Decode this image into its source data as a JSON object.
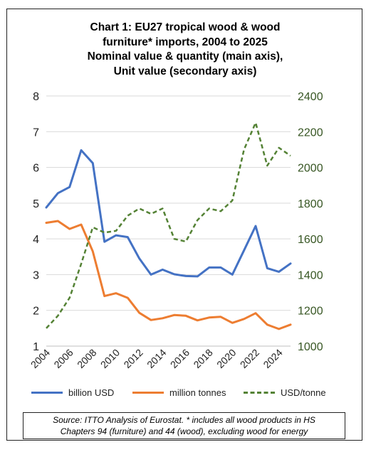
{
  "title_lines": [
    "Chart 1: EU27 tropical wood & wood",
    "furniture* imports, 2004 to 2025",
    "Nominal value & quantity (main axis),",
    "Unit value (secondary axis)"
  ],
  "source_lines": [
    "Source: ITTO Analysis of Eurostat. * includes all wood products in HS",
    "Chapters 94 (furniture) and 44 (wood), excluding wood for energy"
  ],
  "colors": {
    "billion_usd": "#4472C4",
    "million_tonnes": "#ED7D31",
    "usd_per_tonne": "#548235",
    "grid": "#d9d9d9",
    "axis_text": "#222222",
    "secondary_axis_text": "#375623"
  },
  "chart_data": {
    "type": "line",
    "grid": true,
    "legend_position": "bottom",
    "x": [
      2004,
      2005,
      2006,
      2007,
      2008,
      2009,
      2010,
      2011,
      2012,
      2013,
      2014,
      2015,
      2016,
      2017,
      2018,
      2019,
      2020,
      2021,
      2022,
      2023,
      2024,
      2025
    ],
    "x_tick_labels": [
      "2004",
      "2006",
      "2008",
      "2010",
      "2012",
      "2014",
      "2016",
      "2018",
      "2020",
      "2022",
      "2024"
    ],
    "x_range": [
      2004,
      2025
    ],
    "primary_axis": {
      "range": [
        1,
        8
      ],
      "ticks": [
        "1",
        "2",
        "3",
        "4",
        "5",
        "6",
        "7",
        "8"
      ]
    },
    "secondary_axis": {
      "range": [
        1000,
        2400
      ],
      "ticks": [
        "1000",
        "1200",
        "1400",
        "1600",
        "1800",
        "2000",
        "2200",
        "2400"
      ]
    },
    "series": [
      {
        "name": "billion USD",
        "axis": "primary",
        "style": "solid",
        "values": [
          4.88,
          5.28,
          5.45,
          6.48,
          6.12,
          3.92,
          4.1,
          4.05,
          3.45,
          3.0,
          3.14,
          3.01,
          2.96,
          2.95,
          3.2,
          3.2,
          3.0,
          3.68,
          4.36,
          3.18,
          3.08,
          3.31
        ]
      },
      {
        "name": "million tonnes",
        "axis": "primary",
        "style": "solid",
        "values": [
          4.45,
          4.5,
          4.28,
          4.4,
          3.65,
          2.4,
          2.48,
          2.35,
          1.93,
          1.73,
          1.78,
          1.87,
          1.85,
          1.72,
          1.8,
          1.82,
          1.65,
          1.76,
          1.92,
          1.6,
          1.48,
          1.6
        ]
      },
      {
        "name": "USD/tonne",
        "axis": "secondary",
        "style": "dashed",
        "values": [
          1100,
          1170,
          1270,
          1460,
          1665,
          1635,
          1645,
          1730,
          1770,
          1740,
          1770,
          1600,
          1585,
          1705,
          1770,
          1755,
          1815,
          2100,
          2250,
          2010,
          2110,
          2065
        ]
      }
    ]
  }
}
